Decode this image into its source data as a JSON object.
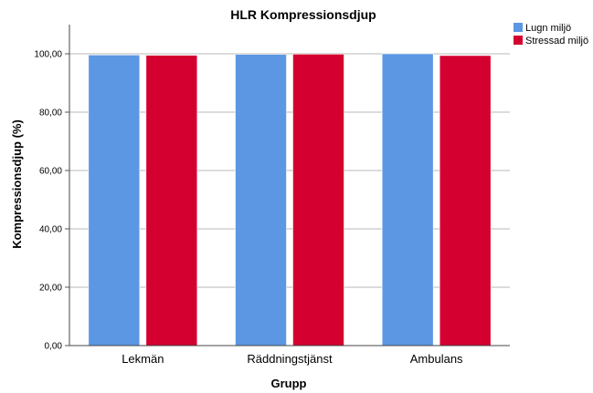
{
  "chart_data": {
    "type": "bar",
    "title": "HLR Kompressionsdjup",
    "xlabel": "Grupp",
    "ylabel": "Kompressionsdjup (%)",
    "categories": [
      "Lekmän",
      "Räddningstjänst",
      "Ambulans"
    ],
    "series": [
      {
        "name": "Lugn miljö",
        "values": [
          99.6,
          99.8,
          100.0
        ],
        "color": "#5b97e3"
      },
      {
        "name": "Stressad miljö",
        "values": [
          99.5,
          99.9,
          99.4
        ],
        "color": "#d4002f"
      }
    ],
    "ylim": [
      0,
      110
    ],
    "yticks": [
      "0,00",
      "20,00",
      "40,00",
      "60,00",
      "80,00",
      "100,00"
    ],
    "ytick_values": [
      0,
      20,
      40,
      60,
      80,
      100
    ],
    "grid": true,
    "legend_position": "top-right"
  }
}
